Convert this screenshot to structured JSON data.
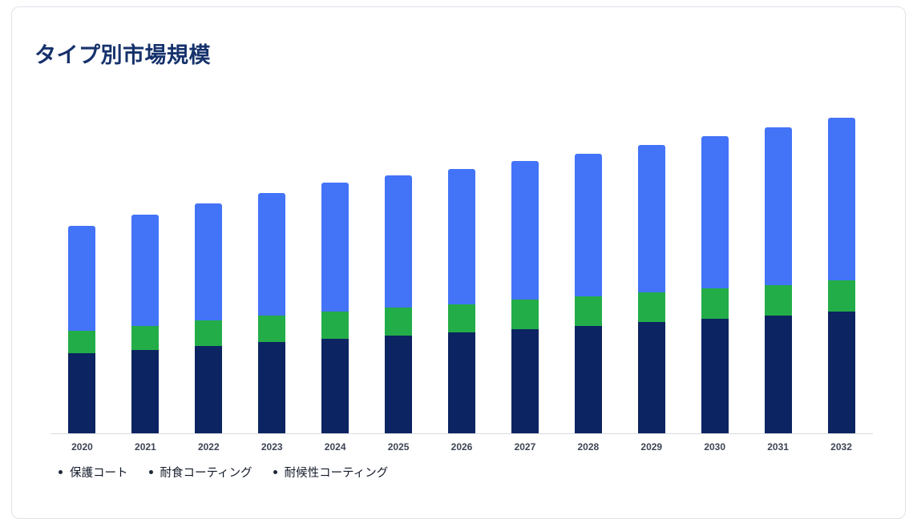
{
  "page": {
    "title": "タイプ別市場規模"
  },
  "chart_data": {
    "type": "bar",
    "stacked": true,
    "title": "タイプ別市場規模",
    "xlabel": "",
    "ylabel": "",
    "grid": false,
    "y_axis_visible": false,
    "legend_position": "bottom-left",
    "ylim": [
      0,
      400
    ],
    "categories": [
      "2020",
      "2021",
      "2022",
      "2023",
      "2024",
      "2025",
      "2026",
      "2027",
      "2028",
      "2029",
      "2030",
      "2031",
      "2032"
    ],
    "series": [
      {
        "name": "保護コート",
        "color": "#0c2461",
        "values": [
          100,
          104,
          109,
          114,
          118,
          122,
          126,
          130,
          134,
          139,
          143,
          147,
          152
        ]
      },
      {
        "name": "耐食コーティング",
        "color": "#23ad49",
        "values": [
          28,
          30,
          32,
          33,
          34,
          35,
          35,
          37,
          37,
          37,
          38,
          38,
          39
        ]
      },
      {
        "name": "耐候性コーティング",
        "color": "#4373f7",
        "values": [
          131,
          139,
          146,
          153,
          161,
          165,
          169,
          173,
          178,
          184,
          190,
          197,
          203
        ]
      }
    ],
    "legend_marker_color": "#1f2937"
  }
}
